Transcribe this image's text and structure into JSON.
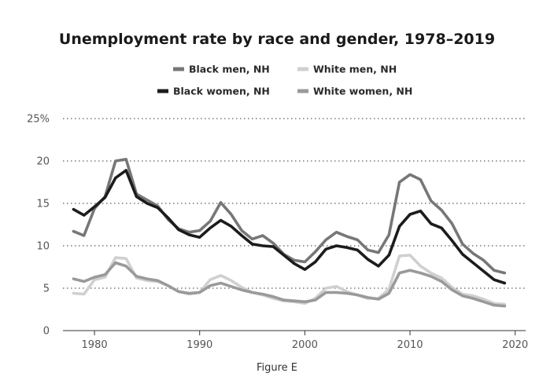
{
  "chart_data": {
    "type": "line",
    "title": "Unemployment rate by race and gender, 1978–2019",
    "caption": "Figure E",
    "xlabel": "",
    "ylabel": "",
    "xlim": [
      1977,
      2021
    ],
    "ylim": [
      0,
      25
    ],
    "x_ticks": [
      1980,
      1990,
      2000,
      2010,
      2020
    ],
    "y_ticks": [
      0,
      5,
      10,
      15,
      20,
      25
    ],
    "y_tick_labels": [
      "0",
      "5",
      "10",
      "15",
      "20",
      "25%"
    ],
    "grid": "horizontal dotted",
    "legend_position": "top, two rows",
    "x": [
      1978,
      1979,
      1980,
      1981,
      1982,
      1983,
      1984,
      1985,
      1986,
      1987,
      1988,
      1989,
      1990,
      1991,
      1992,
      1993,
      1994,
      1995,
      1996,
      1997,
      1998,
      1999,
      2000,
      2001,
      2002,
      2003,
      2004,
      2005,
      2006,
      2007,
      2008,
      2009,
      2010,
      2011,
      2012,
      2013,
      2014,
      2015,
      2016,
      2017,
      2018,
      2019
    ],
    "series": [
      {
        "name": "Black men, NH",
        "color": "#777777",
        "values": [
          11.7,
          11.2,
          14.4,
          15.8,
          20.0,
          20.2,
          16.1,
          15.4,
          14.7,
          13.1,
          12.0,
          11.6,
          11.8,
          12.9,
          15.1,
          13.7,
          11.8,
          10.8,
          11.2,
          10.3,
          9.0,
          8.3,
          8.1,
          9.3,
          10.7,
          11.6,
          11.1,
          10.7,
          9.5,
          9.2,
          11.3,
          17.5,
          18.4,
          17.8,
          15.3,
          14.2,
          12.6,
          10.2,
          9.1,
          8.3,
          7.1,
          6.8
        ]
      },
      {
        "name": "Black women, NH",
        "color": "#1c1c1c",
        "values": [
          14.3,
          13.6,
          14.6,
          15.7,
          18.0,
          18.9,
          15.8,
          15.0,
          14.5,
          13.3,
          11.9,
          11.3,
          11.0,
          12.1,
          13.0,
          12.3,
          11.2,
          10.2,
          10.0,
          9.9,
          8.9,
          7.9,
          7.2,
          8.1,
          9.6,
          10.0,
          9.8,
          9.5,
          8.4,
          7.6,
          8.9,
          12.3,
          13.7,
          14.1,
          12.6,
          12.1,
          10.6,
          9.0,
          8.0,
          7.0,
          6.0,
          5.6
        ]
      },
      {
        "name": "White men, NH",
        "color": "#d0d0d0",
        "values": [
          4.4,
          4.3,
          6.0,
          6.3,
          8.6,
          8.5,
          6.2,
          5.9,
          5.8,
          5.3,
          4.6,
          4.3,
          4.5,
          6.0,
          6.5,
          5.9,
          5.1,
          4.5,
          4.2,
          3.8,
          3.5,
          3.4,
          3.2,
          3.8,
          5.0,
          5.2,
          4.6,
          4.2,
          3.8,
          3.8,
          4.9,
          8.8,
          8.9,
          7.6,
          6.8,
          6.2,
          5.1,
          4.3,
          4.1,
          3.7,
          3.2,
          3.1
        ]
      },
      {
        "name": "White women, NH",
        "color": "#9a9a9a",
        "values": [
          6.1,
          5.8,
          6.3,
          6.6,
          8.0,
          7.6,
          6.4,
          6.1,
          5.9,
          5.3,
          4.6,
          4.4,
          4.5,
          5.3,
          5.6,
          5.2,
          4.8,
          4.5,
          4.3,
          4.0,
          3.6,
          3.5,
          3.4,
          3.6,
          4.5,
          4.5,
          4.4,
          4.2,
          3.9,
          3.7,
          4.4,
          6.8,
          7.1,
          6.8,
          6.4,
          5.8,
          4.8,
          4.1,
          3.8,
          3.4,
          3.0,
          2.9
        ]
      }
    ]
  }
}
